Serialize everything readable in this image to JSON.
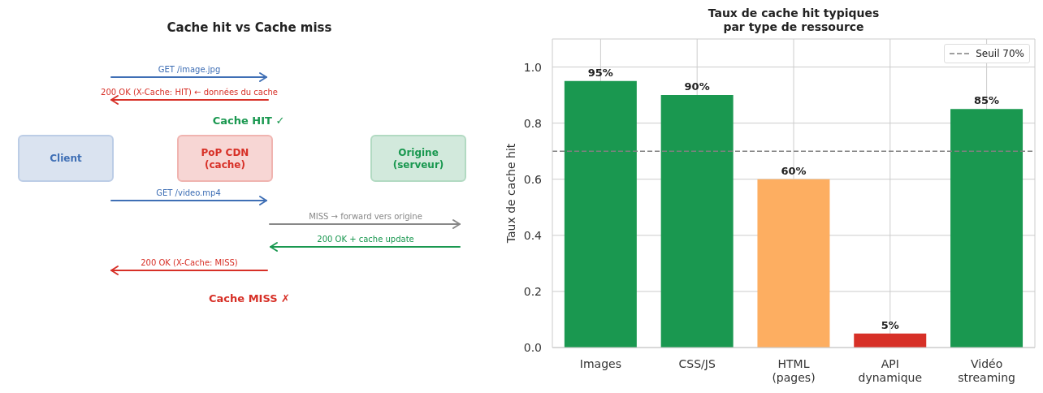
{
  "chart_data": [
    {
      "type": "other",
      "title": "Cache hit vs Cache miss",
      "annotations": [
        "GET /image.jpg",
        "200 OK (X-Cache: HIT) ← données du cache",
        "Cache HIT ✓",
        "Client",
        "PoP CDN\n(cache)",
        "Origine\n(serveur)",
        "GET /video.mp4",
        "MISS → forward vers origine",
        "200 OK + cache update",
        "200 OK (X-Cache: MISS)",
        "Cache MISS ✗"
      ]
    },
    {
      "type": "bar",
      "title": "Taux de cache hit typiques\npar type de ressource",
      "ylabel": "Taux de cache hit",
      "categories": [
        "Images",
        "CSS/JS",
        "HTML\n(pages)",
        "API\ndynamique",
        "Vidéo\nstreaming"
      ],
      "values": [
        0.95,
        0.9,
        0.6,
        0.05,
        0.85
      ],
      "colors": [
        "#1a9850",
        "#1a9850",
        "#fdae61",
        "#d73027",
        "#1a9850"
      ],
      "value_labels": [
        "95%",
        "90%",
        "60%",
        "5%",
        "85%"
      ],
      "ylim": [
        0,
        1.1
      ],
      "yticks": [
        {
          "value": 0,
          "label": "0.0"
        },
        0.2,
        0.4,
        0.6,
        0.8,
        {
          "value": 1,
          "label": "1.0"
        }
      ],
      "grid": true,
      "legend": "top right",
      "ref_lines": [
        {
          "axis": "y",
          "value": 0.7,
          "label": "Seuil 70%",
          "color": "#808080",
          "line_style": "dashed"
        }
      ]
    }
  ]
}
